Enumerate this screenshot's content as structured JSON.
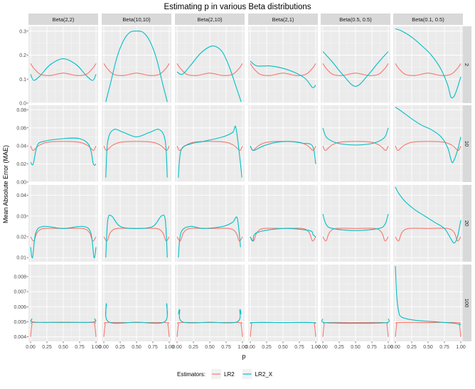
{
  "chart_data": {
    "type": "line",
    "title": "Estimating p in various Beta distributions",
    "xlabel": "p",
    "ylabel": "Mean Absolute Error (MAE)",
    "xlim": [
      0,
      1
    ],
    "x_ticks": [
      "0.00",
      "0.25",
      "0.50",
      "0.75",
      "1.00"
    ],
    "grid": true,
    "legend_position": "bottom",
    "legend": {
      "title": "Estimators:",
      "entries": [
        {
          "name": "LR2",
          "color": "#F8766D"
        },
        {
          "name": "LR2_X",
          "color": "#00BFC4"
        }
      ]
    },
    "columns": [
      "Beta(2,2)",
      "Beta(10,10)",
      "Beta(2,10)",
      "Beta(2,1)",
      "Beta(0.5, 0.5)",
      "Beta(0.1, 0.5)"
    ],
    "rows": [
      {
        "label": "2",
        "ylim": [
          0.0,
          0.32
        ],
        "y_ticks": [
          0.0,
          0.1,
          0.2,
          0.3
        ],
        "y_tick_labels": [
          "0.0",
          "0.1",
          "0.2",
          "0.3"
        ],
        "lr2": [
          [
            0,
            0.165
          ],
          [
            0.05,
            0.145
          ],
          [
            0.15,
            0.12
          ],
          [
            0.3,
            0.115
          ],
          [
            0.5,
            0.125
          ],
          [
            0.7,
            0.115
          ],
          [
            0.85,
            0.12
          ],
          [
            0.95,
            0.145
          ],
          [
            1,
            0.165
          ]
        ],
        "panels": [
          [
            [
              0,
              0.12
            ],
            [
              0.05,
              0.095
            ],
            [
              0.15,
              0.115
            ],
            [
              0.3,
              0.16
            ],
            [
              0.5,
              0.185
            ],
            [
              0.7,
              0.16
            ],
            [
              0.85,
              0.115
            ],
            [
              0.95,
              0.095
            ],
            [
              1,
              0.12
            ]
          ],
          [
            [
              0.03,
              0.005
            ],
            [
              0.1,
              0.08
            ],
            [
              0.2,
              0.19
            ],
            [
              0.3,
              0.26
            ],
            [
              0.4,
              0.295
            ],
            [
              0.5,
              0.3
            ],
            [
              0.6,
              0.295
            ],
            [
              0.7,
              0.26
            ],
            [
              0.8,
              0.19
            ],
            [
              0.9,
              0.08
            ],
            [
              0.97,
              0.005
            ]
          ],
          [
            [
              0,
              0.13
            ],
            [
              0.08,
              0.12
            ],
            [
              0.2,
              0.155
            ],
            [
              0.35,
              0.205
            ],
            [
              0.5,
              0.235
            ],
            [
              0.6,
              0.235
            ],
            [
              0.7,
              0.21
            ],
            [
              0.8,
              0.15
            ],
            [
              0.9,
              0.07
            ],
            [
              0.98,
              0.005
            ]
          ],
          [
            [
              0,
              0.175
            ],
            [
              0.1,
              0.155
            ],
            [
              0.3,
              0.155
            ],
            [
              0.5,
              0.145
            ],
            [
              0.7,
              0.125
            ],
            [
              0.85,
              0.1
            ],
            [
              0.95,
              0.065
            ],
            [
              1,
              0.075
            ]
          ],
          [
            [
              0,
              0.215
            ],
            [
              0.15,
              0.17
            ],
            [
              0.3,
              0.12
            ],
            [
              0.5,
              0.07
            ],
            [
              0.7,
              0.12
            ],
            [
              0.85,
              0.17
            ],
            [
              1,
              0.215
            ]
          ],
          [
            [
              0,
              0.31
            ],
            [
              0.1,
              0.3
            ],
            [
              0.25,
              0.275
            ],
            [
              0.4,
              0.24
            ],
            [
              0.55,
              0.2
            ],
            [
              0.7,
              0.14
            ],
            [
              0.8,
              0.075
            ],
            [
              0.85,
              0.025
            ],
            [
              0.9,
              0.03
            ],
            [
              0.95,
              0.065
            ],
            [
              1,
              0.11
            ]
          ]
        ]
      },
      {
        "label": "10",
        "ylim": [
          0.0,
          0.085
        ],
        "y_ticks": [
          0.0,
          0.02,
          0.04,
          0.06,
          0.08
        ],
        "y_tick_labels": [
          "0.00",
          "0.02",
          "0.04",
          "0.06",
          "0.08"
        ],
        "lr2": [
          [
            0,
            0.04
          ],
          [
            0.04,
            0.035
          ],
          [
            0.12,
            0.04
          ],
          [
            0.25,
            0.044
          ],
          [
            0.5,
            0.045
          ],
          [
            0.75,
            0.044
          ],
          [
            0.88,
            0.04
          ],
          [
            0.96,
            0.035
          ],
          [
            1,
            0.04
          ]
        ],
        "panels": [
          [
            [
              0,
              0.022
            ],
            [
              0.04,
              0.02
            ],
            [
              0.1,
              0.04
            ],
            [
              0.2,
              0.045
            ],
            [
              0.5,
              0.048
            ],
            [
              0.75,
              0.048
            ],
            [
              0.9,
              0.04
            ],
            [
              0.96,
              0.02
            ],
            [
              1,
              0.02
            ]
          ],
          [
            [
              0.03,
              0.005
            ],
            [
              0.06,
              0.045
            ],
            [
              0.15,
              0.058
            ],
            [
              0.3,
              0.055
            ],
            [
              0.5,
              0.05
            ],
            [
              0.7,
              0.055
            ],
            [
              0.85,
              0.058
            ],
            [
              0.94,
              0.045
            ],
            [
              0.97,
              0.005
            ]
          ],
          [
            [
              0.02,
              0.005
            ],
            [
              0.06,
              0.035
            ],
            [
              0.2,
              0.042
            ],
            [
              0.4,
              0.045
            ],
            [
              0.7,
              0.05
            ],
            [
              0.85,
              0.055
            ],
            [
              0.9,
              0.06
            ],
            [
              0.97,
              0.02
            ],
            [
              0.99,
              0.005
            ]
          ],
          [
            [
              0,
              0.04
            ],
            [
              0.05,
              0.035
            ],
            [
              0.2,
              0.04
            ],
            [
              0.4,
              0.044
            ],
            [
              0.6,
              0.045
            ],
            [
              0.8,
              0.043
            ],
            [
              0.95,
              0.04
            ],
            [
              1,
              0.02
            ]
          ],
          [
            [
              0,
              0.06
            ],
            [
              0.05,
              0.05
            ],
            [
              0.15,
              0.045
            ],
            [
              0.3,
              0.042
            ],
            [
              0.5,
              0.041
            ],
            [
              0.7,
              0.042
            ],
            [
              0.85,
              0.045
            ],
            [
              0.95,
              0.05
            ],
            [
              1,
              0.06
            ]
          ],
          [
            [
              0,
              0.083
            ],
            [
              0.1,
              0.078
            ],
            [
              0.25,
              0.07
            ],
            [
              0.4,
              0.063
            ],
            [
              0.55,
              0.058
            ],
            [
              0.7,
              0.05
            ],
            [
              0.8,
              0.038
            ],
            [
              0.85,
              0.025
            ],
            [
              0.88,
              0.022
            ],
            [
              0.95,
              0.035
            ],
            [
              1,
              0.05
            ]
          ]
        ]
      },
      {
        "label": "20",
        "ylim": [
          0.008,
          0.045
        ],
        "y_ticks": [
          0.01,
          0.02,
          0.03,
          0.04
        ],
        "y_tick_labels": [
          "0.01",
          "0.02",
          "0.03",
          "0.04"
        ],
        "lr2": [
          [
            0,
            0.02
          ],
          [
            0.05,
            0.018
          ],
          [
            0.1,
            0.022
          ],
          [
            0.2,
            0.024
          ],
          [
            0.5,
            0.024
          ],
          [
            0.8,
            0.024
          ],
          [
            0.9,
            0.022
          ],
          [
            0.95,
            0.018
          ],
          [
            1,
            0.02
          ]
        ],
        "panels": [
          [
            [
              0,
              0.015
            ],
            [
              0.03,
              0.01
            ],
            [
              0.08,
              0.022
            ],
            [
              0.2,
              0.025
            ],
            [
              0.5,
              0.024
            ],
            [
              0.8,
              0.025
            ],
            [
              0.92,
              0.022
            ],
            [
              0.97,
              0.01
            ],
            [
              1,
              0.015
            ]
          ],
          [
            [
              0.03,
              0.01
            ],
            [
              0.06,
              0.028
            ],
            [
              0.12,
              0.03
            ],
            [
              0.25,
              0.025
            ],
            [
              0.5,
              0.024
            ],
            [
              0.75,
              0.025
            ],
            [
              0.88,
              0.03
            ],
            [
              0.94,
              0.028
            ],
            [
              0.97,
              0.01
            ]
          ],
          [
            [
              0.02,
              0.01
            ],
            [
              0.06,
              0.022
            ],
            [
              0.2,
              0.025
            ],
            [
              0.4,
              0.024
            ],
            [
              0.7,
              0.025
            ],
            [
              0.85,
              0.027
            ],
            [
              0.92,
              0.029
            ],
            [
              0.97,
              0.015
            ]
          ],
          [
            [
              0,
              0.02
            ],
            [
              0.04,
              0.018
            ],
            [
              0.1,
              0.022
            ],
            [
              0.5,
              0.024
            ],
            [
              0.9,
              0.023
            ],
            [
              0.96,
              0.021
            ],
            [
              1,
              0.02
            ]
          ],
          [
            [
              0,
              0.031
            ],
            [
              0.05,
              0.026
            ],
            [
              0.15,
              0.024
            ],
            [
              0.5,
              0.023
            ],
            [
              0.85,
              0.024
            ],
            [
              0.95,
              0.026
            ],
            [
              1,
              0.031
            ]
          ],
          [
            [
              0,
              0.044
            ],
            [
              0.05,
              0.041
            ],
            [
              0.15,
              0.037
            ],
            [
              0.3,
              0.033
            ],
            [
              0.45,
              0.03
            ],
            [
              0.6,
              0.027
            ],
            [
              0.75,
              0.024
            ],
            [
              0.85,
              0.019
            ],
            [
              0.9,
              0.017
            ],
            [
              0.95,
              0.02
            ],
            [
              1,
              0.028
            ]
          ]
        ]
      },
      {
        "label": "100",
        "ylim": [
          0.0037,
          0.0088
        ],
        "y_ticks": [
          0.004,
          0.005,
          0.006,
          0.007,
          0.008
        ],
        "y_tick_labels": [
          "0.004",
          "0.005",
          "0.006",
          "0.007",
          "0.008"
        ],
        "lr2": [
          [
            0,
            0.004
          ],
          [
            0.02,
            0.0048
          ],
          [
            0.05,
            0.00495
          ],
          [
            0.5,
            0.00495
          ],
          [
            0.95,
            0.00495
          ],
          [
            0.98,
            0.0048
          ],
          [
            1,
            0.004
          ]
        ],
        "panels": [
          [
            [
              0,
              0.005
            ],
            [
              0.02,
              0.0052
            ],
            [
              0.05,
              0.00498
            ],
            [
              0.5,
              0.00497
            ],
            [
              0.95,
              0.00498
            ],
            [
              0.98,
              0.0052
            ],
            [
              1,
              0.005
            ]
          ],
          [
            [
              0.03,
              0.0055
            ],
            [
              0.04,
              0.0062
            ],
            [
              0.07,
              0.005
            ],
            [
              0.5,
              0.00497
            ],
            [
              0.93,
              0.005
            ],
            [
              0.96,
              0.0062
            ],
            [
              0.97,
              0.0055
            ]
          ],
          [
            [
              0.02,
              0.0055
            ],
            [
              0.04,
              0.0058
            ],
            [
              0.08,
              0.005
            ],
            [
              0.5,
              0.00497
            ],
            [
              0.92,
              0.005
            ],
            [
              0.96,
              0.0058
            ],
            [
              0.98,
              0.0055
            ]
          ],
          [
            [
              0,
              0.0049
            ],
            [
              0.05,
              0.00495
            ],
            [
              0.5,
              0.00495
            ],
            [
              0.95,
              0.00495
            ],
            [
              1,
              0.0049
            ]
          ],
          [
            [
              0,
              0.0052
            ],
            [
              0.03,
              0.00495
            ],
            [
              0.5,
              0.0049
            ],
            [
              0.97,
              0.00495
            ],
            [
              1,
              0.0052
            ]
          ],
          [
            [
              0,
              0.0087
            ],
            [
              0.02,
              0.0068
            ],
            [
              0.05,
              0.0057
            ],
            [
              0.1,
              0.0053
            ],
            [
              0.3,
              0.0051
            ],
            [
              0.6,
              0.005
            ],
            [
              0.9,
              0.0049
            ],
            [
              1,
              0.0048
            ]
          ]
        ]
      }
    ]
  }
}
